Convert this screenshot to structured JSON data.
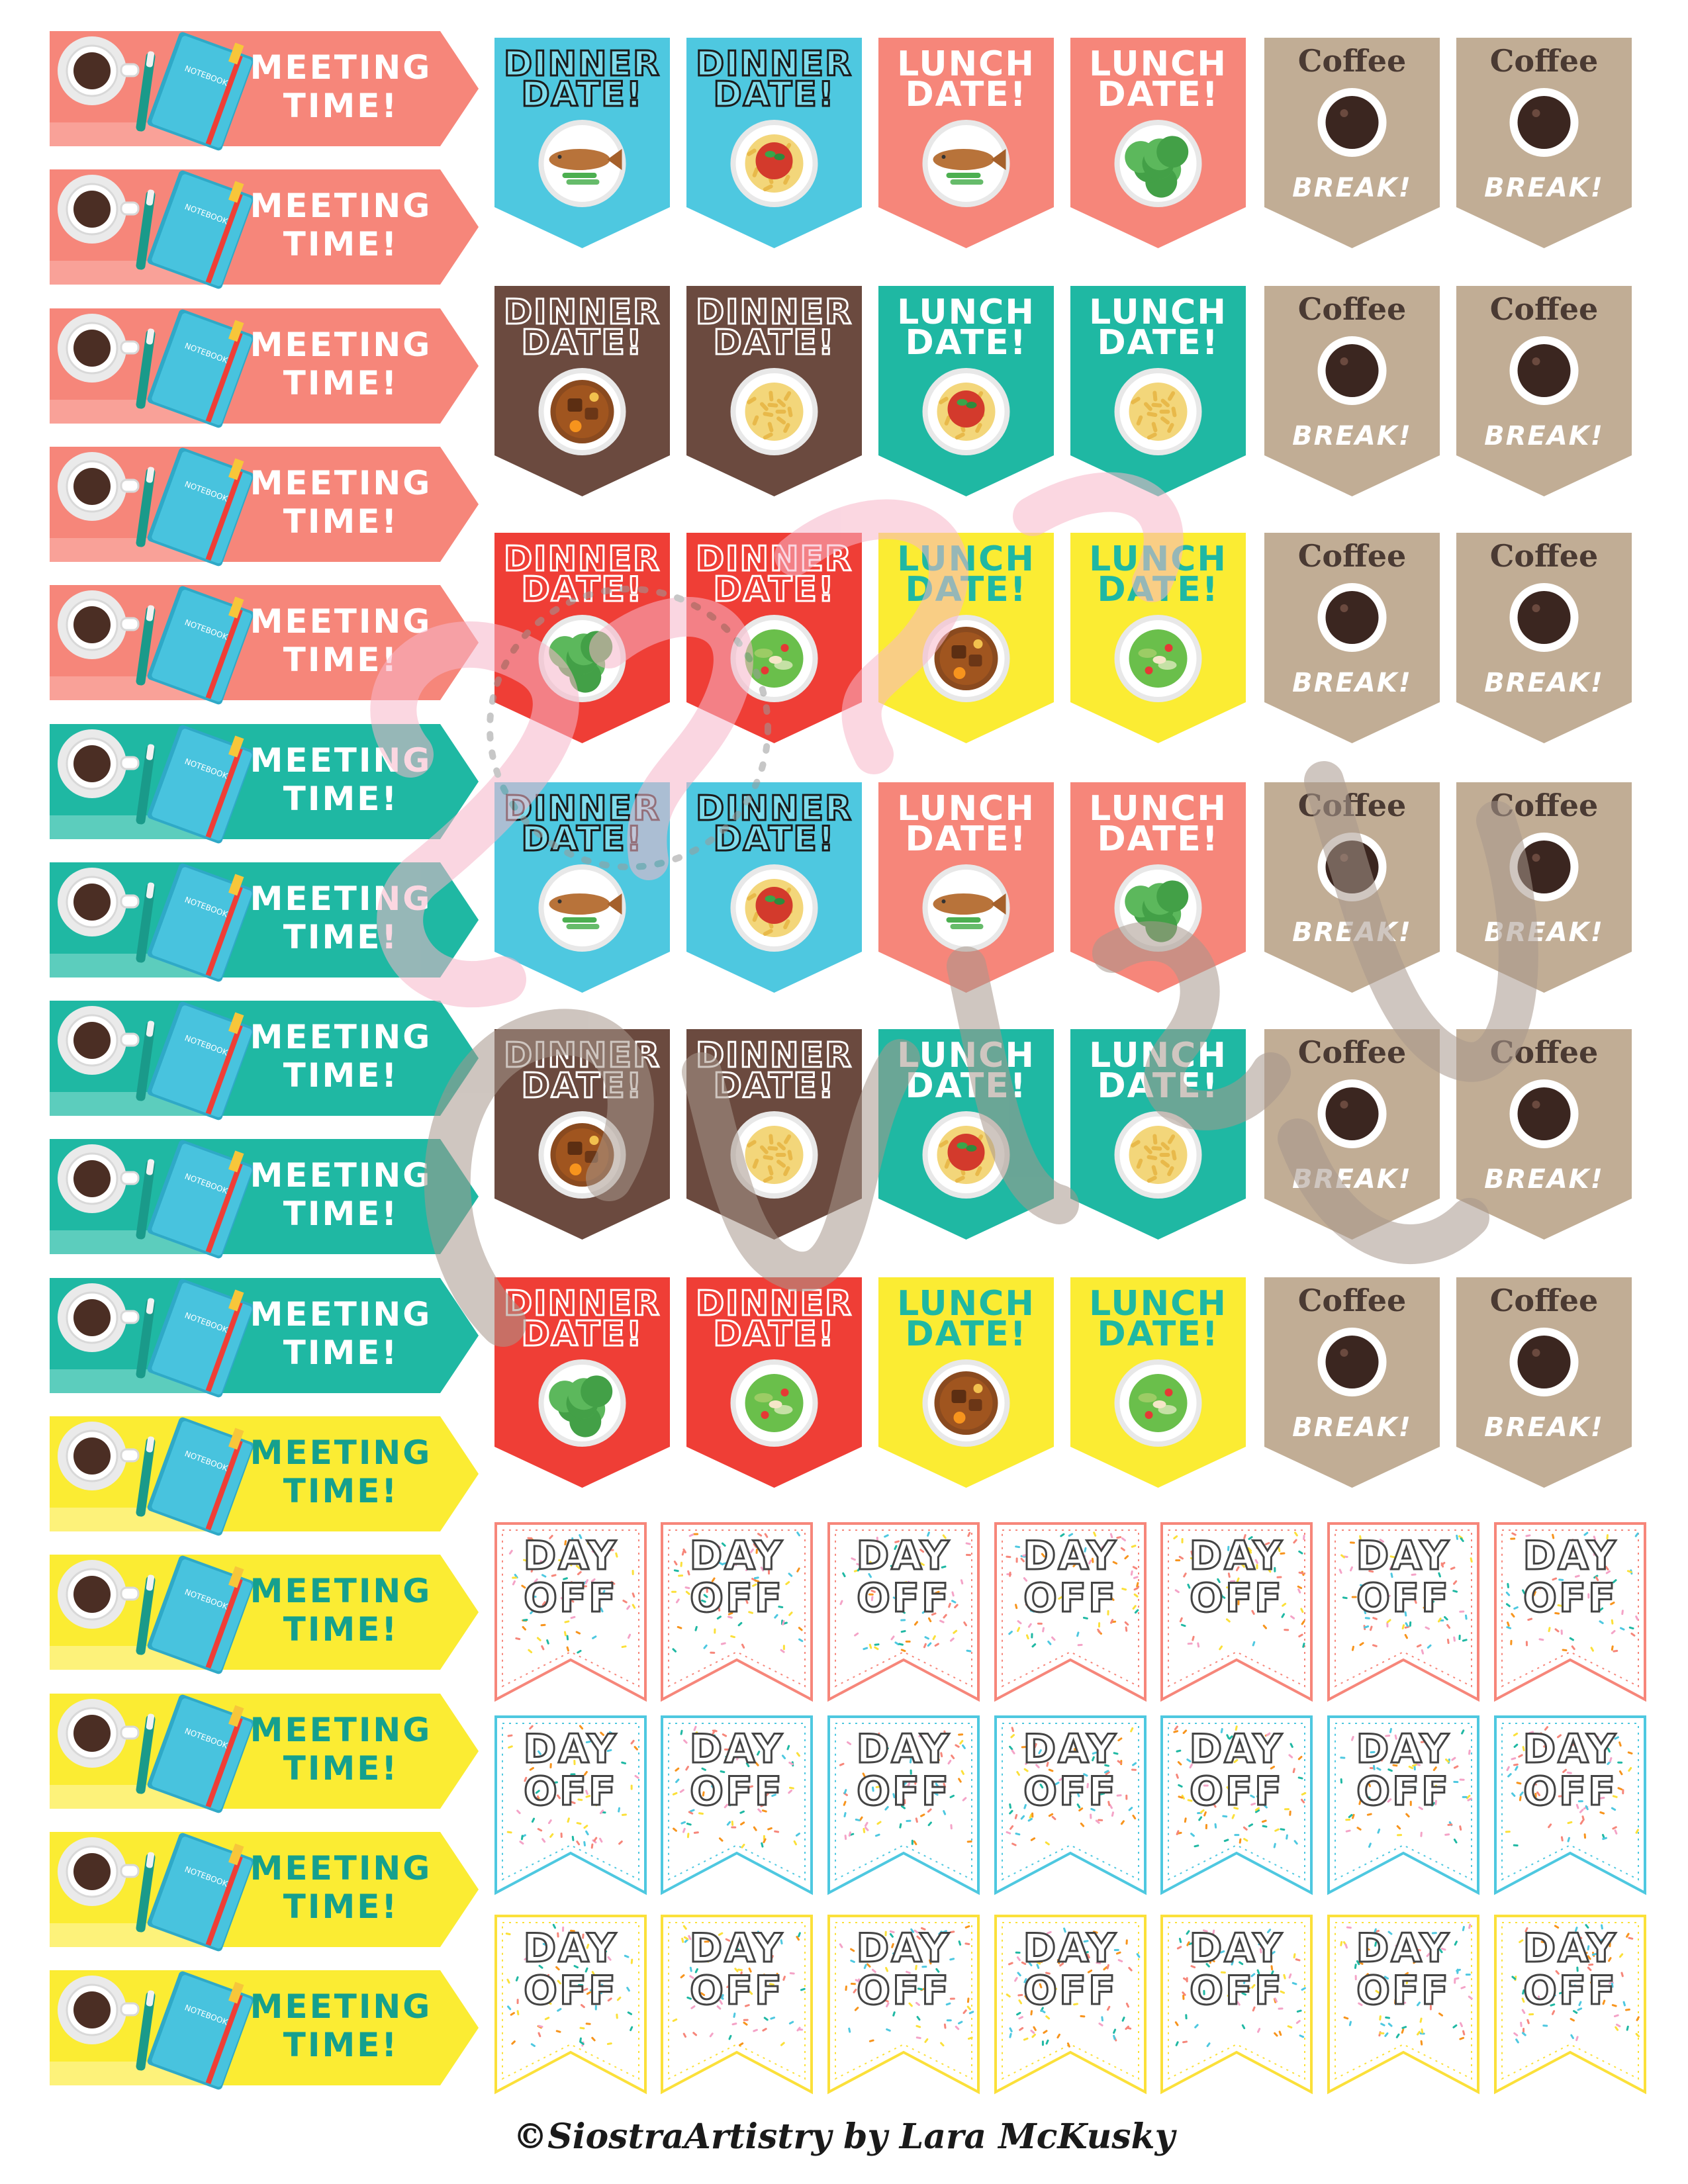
{
  "meeting": {
    "label_line1": "MEETING",
    "label_line2": "TIME!",
    "notebook_label": "NOTEBOOK",
    "count": 15,
    "groups": [
      {
        "count": 5,
        "bg": "#f6867a",
        "stripe": "#f9a198",
        "text": "#ffffff"
      },
      {
        "count": 5,
        "bg": "#1fb8a3",
        "stripe": "#5ccdbd",
        "text": "#ffffff"
      },
      {
        "count": 5,
        "bg": "#fbec33",
        "stripe": "#fdf27a",
        "text": "#15a08e"
      }
    ]
  },
  "food": {
    "rows": [
      [
        "dinner-blue-fish",
        "dinner-blue-pasta",
        "lunch-coral-fish",
        "lunch-coral-salad",
        "coffee",
        "coffee"
      ],
      [
        "dinner-brown-stew",
        "dinner-brown-macaroni",
        "lunch-teal-pasta",
        "lunch-teal-macaroni",
        "coffee",
        "coffee"
      ],
      [
        "dinner-red-salad",
        "dinner-red-mixsalad",
        "lunch-yellow-stew",
        "lunch-yellow-mixsalad",
        "coffee",
        "coffee"
      ],
      [
        "dinner-blue-fish",
        "dinner-blue-pasta",
        "lunch-coral-fish",
        "lunch-coral-salad",
        "coffee",
        "coffee"
      ],
      [
        "dinner-brown-stew",
        "dinner-brown-macaroni",
        "lunch-teal-pasta",
        "lunch-teal-macaroni",
        "coffee",
        "coffee"
      ],
      [
        "dinner-red-salad",
        "dinner-red-mixsalad",
        "lunch-yellow-stew",
        "lunch-yellow-mixsalad",
        "coffee",
        "coffee"
      ]
    ],
    "labels": {
      "dinner_line1": "DINNER",
      "dinner_line2": "DATE!",
      "lunch_line1": "LUNCH",
      "lunch_line2": "DATE!",
      "coffee_top": "Coffee",
      "coffee_bottom": "BREAK!"
    },
    "colors": {
      "blue": "#4ec8e0",
      "brown": "#6b4a3f",
      "coral": "#f6867a",
      "teal": "#1fb8a3",
      "red": "#ef3e36",
      "yellow": "#fbec33",
      "coffee": "#c1ad95"
    }
  },
  "dayoff": {
    "line1": "DAY",
    "line2": "OFF",
    "rows": [
      {
        "count": 7,
        "border": "#f6867a"
      },
      {
        "count": 7,
        "border": "#4ec8e0"
      },
      {
        "count": 7,
        "border": "#fbe03a"
      }
    ],
    "confetti_colors": [
      "#f6867a",
      "#4ec8e0",
      "#fbe03a",
      "#1fb8a3",
      "#f4a3c7",
      "#f7941d"
    ]
  },
  "credit": "©SiostraArtistry by Lara McKusky"
}
